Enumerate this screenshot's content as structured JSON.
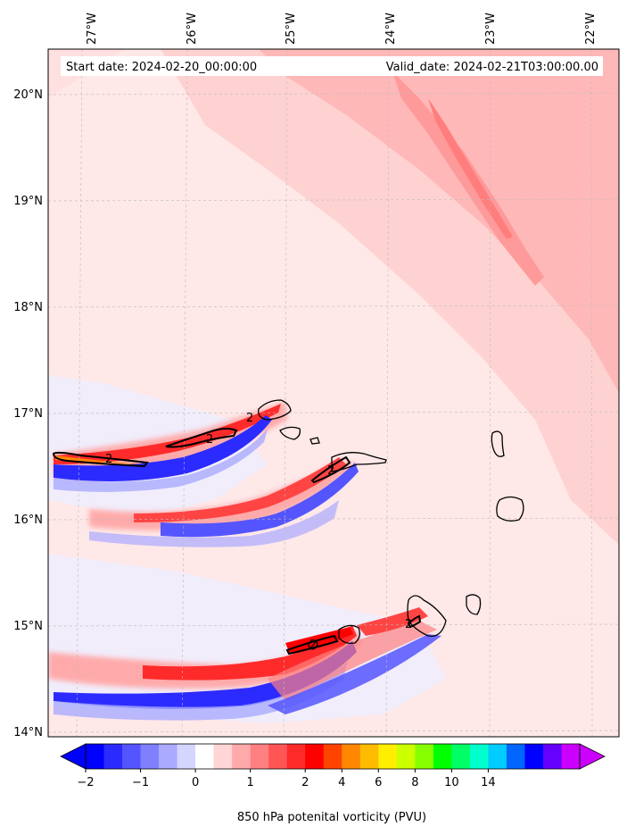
{
  "header": {
    "start_date": "Start date: 2024-02-20_00:00:00",
    "valid_date": "Valid_date: 2024-02-21T03:00:00.00"
  },
  "map": {
    "longitude_labels": [
      "27°W",
      "26°W",
      "25°W",
      "24°W",
      "23°W",
      "22°W"
    ],
    "latitude_labels": [
      "20°N",
      "19°N",
      "18°N",
      "17°N",
      "16°N",
      "15°N",
      "14°N"
    ],
    "grid": true,
    "contour_labels": [
      "2",
      "2",
      "2",
      "2",
      "2",
      "2"
    ]
  },
  "colorbar": {
    "title": "850 hPa potenital vorticity (PVU)",
    "tick_labels": [
      "−2",
      "−1",
      "0",
      "1",
      "2",
      "4",
      "6",
      "8",
      "10",
      "14"
    ],
    "colors": [
      "#0000ff",
      "#2b2bff",
      "#5555ff",
      "#8080ff",
      "#aaaaff",
      "#d5d5ff",
      "#ffffff",
      "#ffd5d5",
      "#ffaaaa",
      "#ff8080",
      "#ff5555",
      "#ff2b2b",
      "#ff0000",
      "#ff4400",
      "#ff8800",
      "#ffbb00",
      "#ffee00",
      "#ccff00",
      "#88ff00",
      "#00ff00",
      "#00ff66",
      "#00ffcc",
      "#00ccff",
      "#0066ff",
      "#0000ff",
      "#6600ff",
      "#cc00ff"
    ],
    "extend": "both"
  },
  "palette": {
    "background_pv": "#ffe8e8",
    "grid_line": "#bbbbbb"
  }
}
